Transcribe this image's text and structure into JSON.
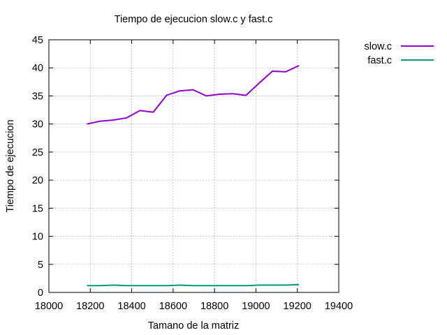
{
  "chart_data": {
    "type": "line",
    "title": "Tiempo de ejecucion slow.c y fast.c",
    "xlabel": "Tamano de la matriz",
    "ylabel": "Tiempo de ejecucion",
    "xlim": [
      18000,
      19400
    ],
    "ylim": [
      0,
      45
    ],
    "xticks": [
      18000,
      18200,
      18400,
      18600,
      18800,
      19000,
      19200,
      19400
    ],
    "yticks": [
      0,
      5,
      10,
      15,
      20,
      25,
      30,
      35,
      40,
      45
    ],
    "grid": true,
    "legend_position": "top-right, outside plot",
    "series": [
      {
        "name": "slow.c",
        "color": "#9400d3",
        "x": [
          18184,
          18248,
          18312,
          18376,
          18440,
          18504,
          18568,
          18632,
          18696,
          18760,
          18824,
          18888,
          18952,
          19016,
          19080,
          19144,
          19208
        ],
        "y": [
          30.0,
          30.5,
          30.7,
          31.1,
          32.4,
          32.1,
          35.1,
          35.9,
          36.1,
          35.0,
          35.3,
          35.4,
          35.1,
          37.3,
          39.4,
          39.3,
          40.4
        ]
      },
      {
        "name": "fast.c",
        "color": "#009e73",
        "x": [
          18184,
          18248,
          18312,
          18376,
          18440,
          18504,
          18568,
          18632,
          18696,
          18760,
          18824,
          18888,
          18952,
          19016,
          19080,
          19144,
          19208
        ],
        "y": [
          1.2,
          1.2,
          1.3,
          1.2,
          1.2,
          1.2,
          1.2,
          1.3,
          1.2,
          1.2,
          1.2,
          1.2,
          1.2,
          1.3,
          1.3,
          1.3,
          1.4
        ]
      }
    ]
  }
}
